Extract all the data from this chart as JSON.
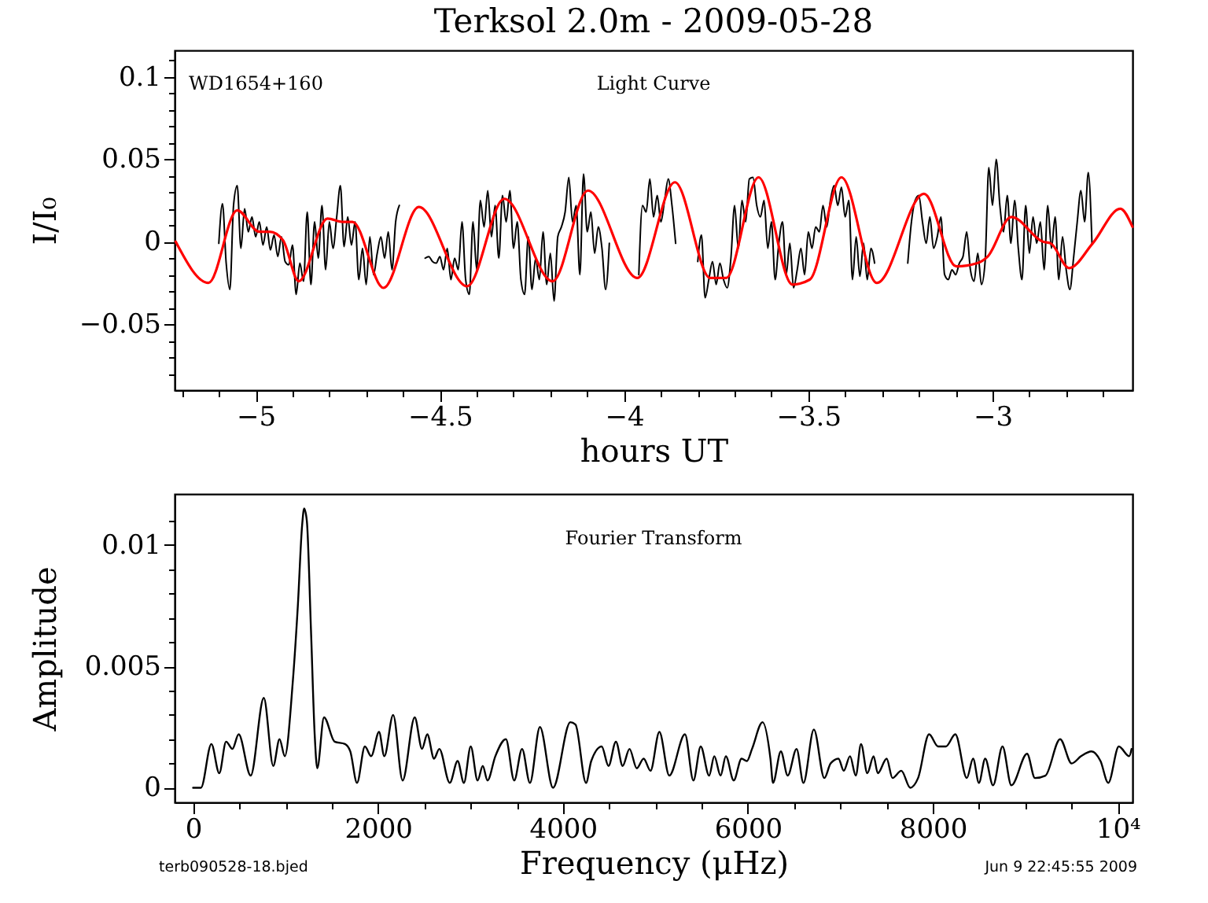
{
  "chart_data": [
    {
      "type": "line",
      "title": "Terksol 2.0m - 2009-05-28",
      "xlabel": "hours UT",
      "ylabel": "I/I₀",
      "annotations": [
        "WD1654+160",
        "Light Curve"
      ],
      "xlim": [
        -5.22,
        -2.62
      ],
      "ylim": [
        -0.09,
        0.116
      ],
      "xticks": [
        {
          "value": -5.2,
          "label": null
        },
        {
          "value": -5.1,
          "label": null
        },
        -5,
        {
          "value": -4.9,
          "label": null
        },
        {
          "value": -4.8,
          "label": null
        },
        {
          "value": -4.7,
          "label": null
        },
        {
          "value": -4.6,
          "label": null
        },
        -4.5,
        {
          "value": -4.4,
          "label": null
        },
        {
          "value": -4.3,
          "label": null
        },
        {
          "value": -4.2,
          "label": null
        },
        {
          "value": -4.1,
          "label": null
        },
        -4,
        {
          "value": -3.9,
          "label": null
        },
        {
          "value": -3.8,
          "label": null
        },
        {
          "value": -3.7,
          "label": null
        },
        {
          "value": -3.6,
          "label": null
        },
        -3.5,
        {
          "value": -3.4,
          "label": null
        },
        {
          "value": -3.3,
          "label": null
        },
        {
          "value": -3.2,
          "label": null
        },
        {
          "value": -3.1,
          "label": null
        },
        -3,
        {
          "value": -2.9,
          "label": null
        },
        {
          "value": -2.8,
          "label": null
        },
        {
          "value": -2.7,
          "label": null
        }
      ],
      "yticks": [
        {
          "value": -0.08,
          "label": null
        },
        {
          "value": -0.07,
          "label": null
        },
        {
          "value": -0.06,
          "label": null
        },
        -0.05,
        {
          "value": -0.04,
          "label": null
        },
        {
          "value": -0.03,
          "label": null
        },
        {
          "value": -0.02,
          "label": null
        },
        {
          "value": -0.01,
          "label": null
        },
        0,
        {
          "value": 0.01,
          "label": null
        },
        {
          "value": 0.02,
          "label": null
        },
        {
          "value": 0.03,
          "label": null
        },
        {
          "value": 0.04,
          "label": null
        },
        0.05,
        {
          "value": 0.06,
          "label": null
        },
        {
          "value": 0.07,
          "label": null
        },
        {
          "value": 0.08,
          "label": null
        },
        {
          "value": 0.09,
          "label": null
        },
        0.1,
        {
          "value": 0.11,
          "label": null
        }
      ],
      "series": [
        {
          "color": "#000000",
          "x": [
            -5.1,
            -5.09,
            -5.08,
            -5.07,
            -5.06,
            -5.05,
            -5.04,
            -5.03,
            -5.02,
            -5.01,
            -5.0,
            -4.99,
            -4.98,
            -4.97,
            -4.96,
            -4.95,
            -4.94,
            -4.93,
            -4.92,
            -4.91,
            -4.9,
            -4.89,
            -4.88,
            -4.87,
            -4.86,
            -4.85,
            -4.84,
            -4.83,
            -4.82,
            -4.81,
            -4.8,
            -4.79,
            -4.78,
            -4.77,
            -4.76,
            -4.75,
            -4.74,
            -4.73,
            -4.72,
            -4.71,
            -4.7,
            -4.69,
            -4.68,
            -4.67,
            -4.66,
            -4.65,
            -4.64,
            -4.63,
            -4.62,
            -4.61,
            -4.6,
            -4.54,
            -4.53,
            -4.52,
            -4.51,
            -4.5,
            -4.49,
            -4.48,
            -4.47,
            -4.46,
            -4.45,
            -4.44,
            -4.43,
            -4.42,
            -4.41,
            -4.4,
            -4.39,
            -4.38,
            -4.37,
            -4.36,
            -4.35,
            -4.34,
            -4.33,
            -4.32,
            -4.31,
            -4.3,
            -4.29,
            -4.28,
            -4.27,
            -4.26,
            -4.25,
            -4.24,
            -4.23,
            -4.22,
            -4.21,
            -4.2,
            -4.19,
            -4.18,
            -4.17,
            -4.16,
            -4.15,
            -4.14,
            -4.13,
            -4.12,
            -4.11,
            -4.1,
            -4.09,
            -4.08,
            -4.07,
            -4.06,
            -4.05,
            -4.04,
            -4.03,
            -3.96,
            -3.95,
            -3.94,
            -3.93,
            -3.92,
            -3.91,
            -3.9,
            -3.89,
            -3.88,
            -3.87,
            -3.86,
            -3.85,
            -3.8,
            -3.79,
            -3.78,
            -3.77,
            -3.76,
            -3.75,
            -3.74,
            -3.73,
            -3.72,
            -3.71,
            -3.7,
            -3.69,
            -3.68,
            -3.67,
            -3.66,
            -3.65,
            -3.64,
            -3.63,
            -3.62,
            -3.61,
            -3.6,
            -3.59,
            -3.58,
            -3.57,
            -3.56,
            -3.55,
            -3.54,
            -3.53,
            -3.52,
            -3.51,
            -3.5,
            -3.49,
            -3.48,
            -3.47,
            -3.46,
            -3.45,
            -3.44,
            -3.43,
            -3.42,
            -3.41,
            -3.4,
            -3.39,
            -3.38,
            -3.37,
            -3.36,
            -3.35,
            -3.34,
            -3.33,
            -3.32,
            -3.31,
            -3.23,
            -3.22,
            -3.21,
            -3.2,
            -3.19,
            -3.18,
            -3.17,
            -3.16,
            -3.15,
            -3.14,
            -3.13,
            -3.12,
            -3.11,
            -3.1,
            -3.09,
            -3.08,
            -3.07,
            -3.06,
            -3.05,
            -3.04,
            -3.03,
            -3.02,
            -3.01,
            -3.0,
            -2.99,
            -2.98,
            -2.97,
            -2.96,
            -2.95,
            -2.94,
            -2.93,
            -2.92,
            -2.91,
            -2.9,
            -2.89,
            -2.88,
            -2.87,
            -2.86,
            -2.85,
            -2.84,
            -2.83,
            -2.82,
            -2.81,
            -2.8,
            -2.79,
            -2.78,
            -2.77,
            -2.76,
            -2.75,
            -2.74,
            -2.73
          ],
          "values": [
            -0.001,
            0.023,
            -0.013,
            -0.029,
            0.022,
            0.034,
            -0.004,
            0.02,
            0.006,
            0.015,
            0.003,
            0.012,
            -0.002,
            0.009,
            -0.005,
            0.004,
            -0.009,
            0.003,
            -0.012,
            -0.014,
            -0.002,
            -0.032,
            -0.013,
            -0.024,
            0.018,
            -0.026,
            0.012,
            -0.01,
            0.022,
            -0.017,
            0.012,
            -0.004,
            0.015,
            0.034,
            -0.003,
            0.015,
            -0.002,
            0.012,
            -0.023,
            -0.004,
            -0.026,
            0.003,
            -0.02,
            -0.007,
            0.003,
            -0.01,
            0.006,
            -0.017,
            0.012,
            0.022,
            null,
            -0.01,
            -0.009,
            -0.012,
            -0.013,
            -0.009,
            -0.017,
            -0.004,
            -0.023,
            -0.01,
            -0.017,
            0.012,
            -0.023,
            -0.032,
            0.012,
            -0.017,
            0.025,
            0.009,
            0.031,
            0.003,
            0.022,
            -0.01,
            0.028,
            0.012,
            0.031,
            -0.004,
            0.012,
            -0.023,
            -0.032,
            0.003,
            -0.029,
            -0.01,
            -0.023,
            0.006,
            -0.026,
            -0.007,
            -0.036,
            0.003,
            0.009,
            0.018,
            0.039,
            0.012,
            0.022,
            -0.02,
            0.041,
            0.006,
            0.018,
            -0.007,
            0.009,
            -0.004,
            -0.029,
            -0.001,
            null,
            -0.02,
            0.022,
            0.018,
            0.038,
            0.015,
            0.028,
            0.012,
            0.025,
            0.038,
            0.022,
            -0.001,
            null,
            -0.012,
            0.004,
            -0.034,
            -0.023,
            -0.012,
            -0.026,
            -0.013,
            -0.023,
            -0.028,
            -0.01,
            0.022,
            -0.004,
            0.025,
            0.012,
            0.038,
            0.039,
            0.022,
            0.015,
            0.025,
            -0.004,
            0.012,
            -0.023,
            -0.001,
            0.012,
            -0.02,
            -0.001,
            -0.028,
            -0.017,
            -0.004,
            -0.02,
            0.006,
            -0.004,
            0.009,
            0.006,
            0.022,
            0.009,
            0.025,
            0.034,
            0.022,
            0.033,
            0.015,
            0.025,
            -0.023,
            0.003,
            -0.021,
            -0.001,
            -0.023,
            -0.004,
            -0.013,
            null,
            -0.013,
            0.012,
            0.025,
            0.028,
            0.012,
            -0.001,
            0.015,
            -0.004,
            0.003,
            0.015,
            -0.02,
            -0.023,
            -0.017,
            -0.02,
            -0.013,
            -0.009,
            0.006,
            -0.017,
            -0.024,
            -0.007,
            -0.026,
            -0.012,
            0.045,
            0.022,
            0.05,
            0.022,
            0.006,
            0.028,
            -0.001,
            0.025,
            -0.004,
            -0.023,
            0.022,
            -0.007,
            0.015,
            -0.001,
            0.012,
            -0.017,
            0.022,
            -0.004,
            0.015,
            -0.023,
            0.003,
            -0.017,
            -0.029,
            -0.01,
            0.012,
            0.031,
            0.012,
            0.042,
            -0.001
          ]
        },
        {
          "color": "#ff0000",
          "x": [
            -5.217,
            -5.128,
            -5.05,
            -4.99,
            -4.962,
            -4.926,
            -4.883,
            -4.805,
            -4.763,
            -4.737,
            -4.653,
            -4.557,
            -4.426,
            -4.325,
            -4.194,
            -4.098,
            -3.964,
            -3.862,
            -3.766,
            -3.723,
            -3.635,
            -3.543,
            -3.496,
            -3.41,
            -3.314,
            -3.186,
            -3.098,
            -3.041,
            -3.013,
            -2.949,
            -2.863,
            -2.842,
            -2.792,
            -2.728,
            -2.653,
            -2.62
          ],
          "values": [
            0.0,
            -0.025,
            0.019,
            0.006,
            0.006,
            0.001,
            -0.024,
            0.014,
            0.012,
            0.012,
            -0.028,
            0.021,
            -0.027,
            0.026,
            -0.024,
            0.031,
            -0.022,
            0.036,
            -0.022,
            -0.022,
            0.039,
            -0.026,
            -0.023,
            0.039,
            -0.025,
            0.029,
            -0.015,
            -0.013,
            -0.009,
            0.015,
            0.0,
            -0.001,
            -0.016,
            -0.001,
            0.02,
            0.009
          ]
        }
      ]
    },
    {
      "type": "line",
      "xlabel": "Frequency (μHz)",
      "ylabel": "Amplitude",
      "annotations": [
        "Fourier Transform",
        "terb090528-18.bjed",
        "Jun  9 22:45:55 2009"
      ],
      "xlim": [
        -200,
        10160
      ],
      "ylim": [
        -0.0006,
        0.0121
      ],
      "xticks": [
        0,
        {
          "value": 500,
          "label": null
        },
        {
          "value": 1000,
          "label": null
        },
        {
          "value": 1500,
          "label": null
        },
        2000,
        {
          "value": 2500,
          "label": null
        },
        {
          "value": 3000,
          "label": null
        },
        {
          "value": 3500,
          "label": null
        },
        4000,
        {
          "value": 4500,
          "label": null
        },
        {
          "value": 5000,
          "label": null
        },
        {
          "value": 5500,
          "label": null
        },
        6000,
        {
          "value": 6500,
          "label": null
        },
        {
          "value": 7000,
          "label": null
        },
        {
          "value": 7500,
          "label": null
        },
        8000,
        {
          "value": 8500,
          "label": null
        },
        {
          "value": 9000,
          "label": null
        },
        {
          "value": 9500,
          "label": null
        },
        {
          "value": 10000,
          "label": "10⁴"
        }
      ],
      "yticks": [
        0,
        {
          "value": 0.001,
          "label": null
        },
        {
          "value": 0.002,
          "label": null
        },
        {
          "value": 0.003,
          "label": null
        },
        {
          "value": 0.004,
          "label": null
        },
        0.005,
        {
          "value": 0.006,
          "label": null
        },
        {
          "value": 0.007,
          "label": null
        },
        {
          "value": 0.008,
          "label": null
        },
        {
          "value": 0.009,
          "label": null
        },
        0.01,
        {
          "value": 0.011,
          "label": null
        }
      ],
      "series": [
        {
          "color": "#000000",
          "x": [
            0,
            85,
            198,
            283,
            357,
            425,
            493,
            623,
            765,
            867,
            935,
            992,
            1077,
            1133,
            1179,
            1201,
            1230,
            1275,
            1315,
            1343,
            1416,
            1530,
            1643,
            1700,
            1773,
            1858,
            1926,
            2011,
            2068,
            2164,
            2266,
            2397,
            2476,
            2533,
            2606,
            2663,
            2776,
            2861,
            2929,
            3003,
            3077,
            3133,
            3184,
            3269,
            3383,
            3473,
            3558,
            3643,
            3751,
            3893,
            4080,
            4136,
            4250,
            4306,
            4419,
            4493,
            4573,
            4646,
            4720,
            4799,
            4873,
            4947,
            5043,
            5150,
            5320,
            5411,
            5490,
            5581,
            5637,
            5705,
            5762,
            5847,
            5932,
            5989,
            6045,
            6159,
            6244,
            6272,
            6357,
            6431,
            6527,
            6601,
            6714,
            6827,
            6895,
            6980,
            7037,
            7105,
            7167,
            7224,
            7292,
            7360,
            7405,
            7501,
            7564,
            7660,
            7756,
            7841,
            7960,
            8057,
            8142,
            8244,
            8368,
            8436,
            8499,
            8567,
            8652,
            8754,
            8850,
            9020,
            9105,
            9218,
            9377,
            9502,
            9604,
            9717,
            9814,
            9898,
            10012,
            10125,
            10150
          ],
          "values": [
            0.0,
            0.0,
            0.0018,
            0.0006,
            0.0019,
            0.0016,
            0.0022,
            0.0005,
            0.0037,
            0.0009,
            0.002,
            0.0013,
            0.0043,
            0.0075,
            0.0108,
            0.0115,
            0.011,
            0.0065,
            0.0022,
            0.0008,
            0.0029,
            0.0019,
            0.0018,
            0.0015,
            0.0002,
            0.0017,
            0.0013,
            0.0023,
            0.0013,
            0.003,
            0.0003,
            0.0029,
            0.0016,
            0.0022,
            0.0012,
            0.0016,
            0.0002,
            0.0011,
            0.0002,
            0.0017,
            0.0003,
            0.0009,
            0.0003,
            0.0013,
            0.002,
            0.0003,
            0.0016,
            0.0002,
            0.0025,
            0.0,
            0.0027,
            0.0026,
            0.0002,
            0.0011,
            0.0017,
            0.0009,
            0.0019,
            0.0009,
            0.0016,
            0.0008,
            0.0012,
            0.0007,
            0.0023,
            0.0005,
            0.0022,
            0.0003,
            0.0017,
            0.0005,
            0.0013,
            0.0005,
            0.0013,
            0.0003,
            0.0012,
            0.0011,
            0.0016,
            0.0027,
            0.0012,
            0.0002,
            0.0015,
            0.0005,
            0.0016,
            0.0002,
            0.0024,
            0.0004,
            0.001,
            0.0012,
            0.0007,
            0.0013,
            0.0005,
            0.0018,
            0.0006,
            0.0013,
            0.0006,
            0.0012,
            0.0004,
            0.0007,
            0.0,
            0.0004,
            0.0022,
            0.0017,
            0.0017,
            0.0022,
            0.0004,
            0.0012,
            0.0002,
            0.0012,
            0.0001,
            0.0017,
            0.0001,
            0.0014,
            0.0004,
            0.0005,
            0.002,
            0.001,
            0.0013,
            0.0015,
            0.0011,
            0.0002,
            0.0017,
            0.0013,
            0.0016
          ]
        }
      ]
    }
  ]
}
